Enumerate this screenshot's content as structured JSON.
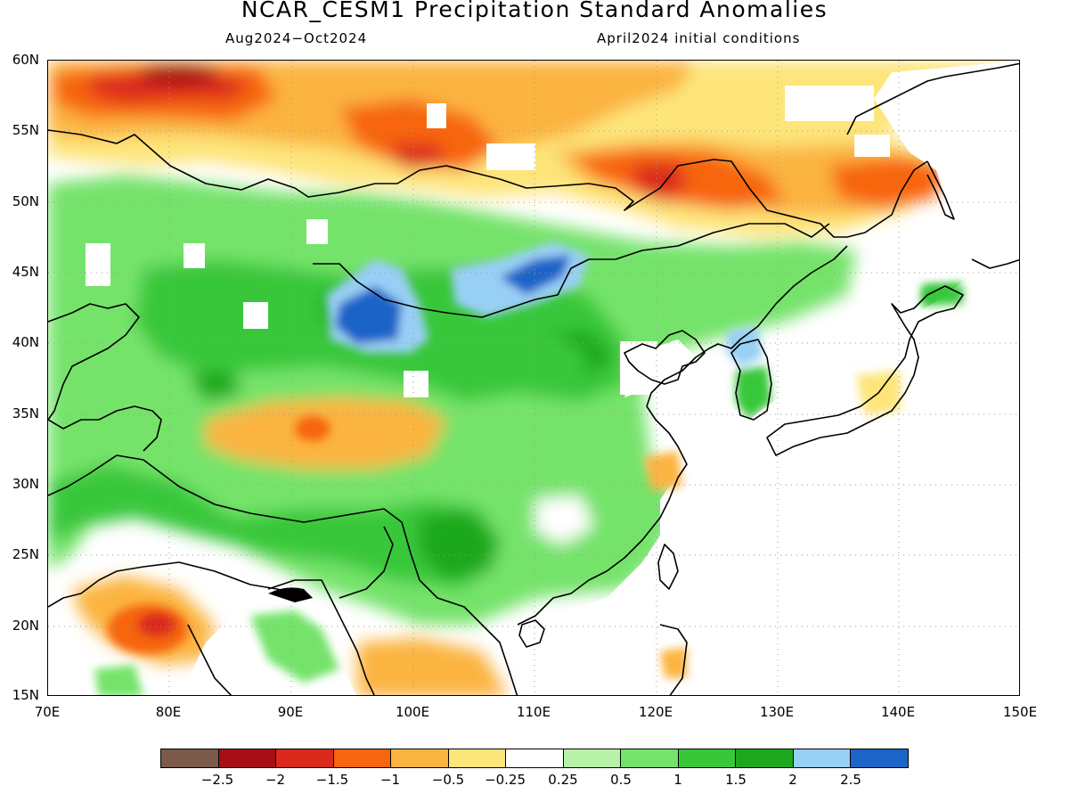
{
  "title": "NCAR_CESM1 Precipitation Standard Anomalies",
  "subtitle_left": "Aug2024−Oct2024",
  "subtitle_right": "April2024 initial conditions",
  "lat_labels": [
    "60N",
    "55N",
    "50N",
    "45N",
    "40N",
    "35N",
    "30N",
    "25N",
    "20N",
    "15N"
  ],
  "lon_labels": [
    "70E",
    "80E",
    "90E",
    "100E",
    "110E",
    "120E",
    "130E",
    "140E",
    "150E"
  ],
  "colorbar": {
    "colors": [
      "#7b5a4c",
      "#a50f15",
      "#db2a1c",
      "#f7650f",
      "#fbb440",
      "#fde57a",
      "#ffffff",
      "#b8f2a8",
      "#74e36a",
      "#39c73a",
      "#1da81f",
      "#98cff5",
      "#1c64c8"
    ],
    "labels": [
      "−2.5",
      "−2",
      "−1.5",
      "−1",
      "−0.5",
      "−0.25",
      "0.25",
      "0.5",
      "1",
      "1.5",
      "2",
      "2.5"
    ]
  },
  "map": {
    "lon_range": [
      70,
      150
    ],
    "lat_range": [
      15,
      60
    ]
  }
}
